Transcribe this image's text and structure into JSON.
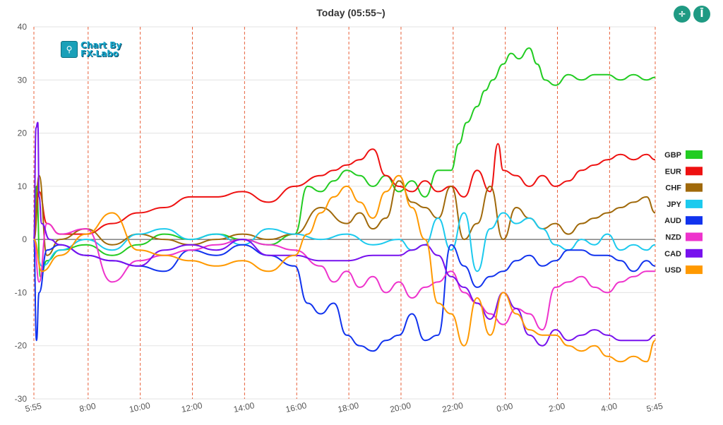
{
  "toolbar": {
    "zoom_fit_label": "÷",
    "zoom_range_label": "Ī"
  },
  "logo": {
    "line1": "Chart By",
    "line2": "FX-Labo"
  },
  "chart_data": {
    "type": "line",
    "title": "Today  (05:55~)",
    "ylim": [
      -30,
      40
    ],
    "yticks": [
      -30,
      -20,
      -10,
      0,
      10,
      20,
      30,
      40
    ],
    "xticks": [
      "5:55",
      "8:00",
      "10:00",
      "12:00",
      "14:00",
      "16:00",
      "18:00",
      "20:00",
      "22:00",
      "0:00",
      "2:00",
      "4:00",
      "5:45"
    ],
    "xtick_pos": [
      0,
      2.08,
      4.08,
      6.08,
      8.08,
      10.08,
      12.08,
      14.08,
      16.08,
      18.08,
      20.08,
      22.08,
      23.83
    ],
    "xlim": [
      0,
      23.83
    ],
    "grid": true,
    "legend_position": "right",
    "series": [
      {
        "name": "GBP",
        "color": "#22cc22",
        "x": [
          0,
          0.1,
          0.25,
          0.5,
          1,
          2,
          3,
          4,
          5,
          6,
          7,
          8,
          9,
          10,
          10.5,
          11,
          11.5,
          12,
          12.5,
          13,
          13.5,
          14,
          14.5,
          15,
          15.5,
          16,
          16.3,
          16.6,
          17,
          17.3,
          17.6,
          18,
          18.3,
          18.6,
          19,
          19.3,
          19.6,
          20,
          20.5,
          21,
          21.5,
          22,
          22.5,
          23,
          23.5,
          23.83
        ],
        "values": [
          0,
          10,
          -7,
          -4,
          -2,
          -1,
          -3,
          -1,
          1,
          0,
          1,
          0,
          -1,
          1,
          10,
          9,
          11,
          13,
          12,
          10,
          12,
          9,
          11,
          8,
          13,
          13,
          18,
          22,
          25,
          28,
          30,
          33,
          35,
          34,
          36,
          33,
          30,
          29,
          31,
          30,
          31,
          31,
          30,
          31,
          30,
          30.5
        ]
      },
      {
        "name": "EUR",
        "color": "#ee1111",
        "x": [
          0,
          0.2,
          0.5,
          1,
          2,
          3,
          4,
          5,
          6,
          7,
          8,
          9,
          10,
          11,
          11.5,
          12,
          12.5,
          13,
          13.5,
          14,
          14.5,
          15,
          15.5,
          16,
          16.5,
          17,
          17.5,
          17.8,
          18,
          18.5,
          19,
          19.5,
          20,
          20.5,
          21,
          21.5,
          22,
          22.5,
          23,
          23.5,
          23.83
        ],
        "values": [
          0,
          9,
          3,
          1,
          1,
          3,
          5,
          6,
          8,
          8,
          9,
          7,
          10,
          12,
          13,
          14,
          15,
          17,
          12,
          10,
          9,
          11,
          9,
          10,
          8,
          13,
          9,
          18,
          13,
          12,
          10,
          12,
          10,
          11,
          13,
          14,
          15,
          16,
          15,
          16,
          15
        ]
      },
      {
        "name": "CHF",
        "color": "#a0690a",
        "x": [
          0,
          0.2,
          0.5,
          1,
          2,
          3,
          4,
          5,
          6,
          7,
          8,
          9,
          10,
          11,
          12,
          12.5,
          13,
          13.5,
          14,
          14.5,
          15,
          15.5,
          16,
          16.5,
          17,
          17.5,
          18,
          18.5,
          19,
          19.5,
          20,
          20.5,
          21,
          21.5,
          22,
          22.5,
          23,
          23.5,
          23.83
        ],
        "values": [
          0,
          12,
          -3,
          0,
          2,
          -1,
          1,
          0,
          -1,
          0,
          1,
          0,
          1,
          6,
          3,
          5,
          2,
          4,
          11,
          7,
          6,
          4,
          10,
          0,
          3,
          10,
          0,
          6,
          4,
          2,
          3,
          1,
          3,
          4,
          5,
          6,
          7,
          8,
          5
        ]
      },
      {
        "name": "JPY",
        "color": "#1ccaee",
        "x": [
          0,
          0.3,
          1,
          2,
          3,
          4,
          5,
          6,
          7,
          8,
          9,
          10,
          11,
          12,
          13,
          14,
          14.5,
          15,
          15.5,
          16,
          16.5,
          17,
          17.5,
          18,
          18.5,
          19,
          19.5,
          20,
          20.5,
          21,
          21.5,
          22,
          22.5,
          23,
          23.5,
          23.83
        ],
        "values": [
          0,
          -5,
          -2,
          0,
          -2,
          1,
          2,
          0,
          1,
          -1,
          2,
          1,
          0,
          1,
          -1,
          0,
          -2,
          -1,
          4,
          -2,
          5,
          -6,
          2,
          5,
          3,
          4,
          2,
          -1,
          -2,
          0,
          -1,
          1,
          -2,
          -1,
          -2,
          -1
        ]
      },
      {
        "name": "AUD",
        "color": "#1133ee",
        "x": [
          0,
          0.1,
          0.2,
          0.5,
          1,
          2,
          3,
          4,
          5,
          6,
          7,
          8,
          9,
          10,
          10.5,
          11,
          11.5,
          12,
          12.5,
          13,
          13.5,
          14,
          14.5,
          15,
          15.5,
          16,
          16.5,
          17,
          17.5,
          18,
          18.5,
          19,
          19.5,
          20,
          20.5,
          21,
          21.5,
          22,
          22.5,
          23,
          23.5,
          23.83
        ],
        "values": [
          0,
          -19,
          -10,
          -2,
          -1,
          -3,
          -4,
          -5,
          -6,
          -2,
          -3,
          -1,
          -3,
          -5,
          -12,
          -14,
          -12,
          -18,
          -20,
          -21,
          -19,
          -18,
          -14,
          -19,
          -18,
          -1,
          -5,
          -9,
          -7,
          -6,
          -4,
          -3,
          -5,
          -4,
          -2,
          -2,
          -3,
          -3,
          -4,
          -6,
          -4,
          -5
        ]
      },
      {
        "name": "NZD",
        "color": "#ee33cc",
        "x": [
          0,
          0.2,
          0.5,
          1,
          2,
          3,
          4,
          5,
          6,
          7,
          8,
          9,
          10,
          11,
          11.5,
          12,
          12.5,
          13,
          13.5,
          14,
          14.5,
          15,
          15.5,
          16,
          16.5,
          17,
          17.5,
          18,
          18.5,
          19,
          19.5,
          20,
          20.5,
          21,
          21.5,
          22,
          22.5,
          23,
          23.5,
          23.83
        ],
        "values": [
          0,
          -8,
          3,
          1,
          2,
          -8,
          -4,
          -3,
          -2,
          -1,
          0,
          -1,
          -2,
          -5,
          -8,
          -6,
          -9,
          -7,
          -10,
          -8,
          -11,
          -9,
          -8,
          -6,
          -10,
          -12,
          -14,
          -16,
          -13,
          -14,
          -17,
          -9,
          -8,
          -7,
          -9,
          -10,
          -8,
          -7,
          -6,
          -6
        ]
      },
      {
        "name": "CAD",
        "color": "#7711ee",
        "x": [
          0,
          0.08,
          0.15,
          0.2,
          0.3,
          0.6,
          1,
          2,
          3,
          4,
          5,
          6,
          7,
          8,
          9,
          10,
          11,
          12,
          13,
          14,
          14.5,
          15,
          15.5,
          16,
          16.5,
          17,
          17.5,
          18,
          18.5,
          19,
          19.5,
          20,
          20.5,
          21,
          21.5,
          22,
          22.5,
          23,
          23.5,
          23.83
        ],
        "values": [
          0,
          21,
          22,
          8,
          3,
          0,
          -1,
          -3,
          -4,
          -5,
          -2,
          -1,
          -2,
          0,
          -3,
          -3,
          -4,
          -4,
          -3,
          -3,
          -2,
          -1,
          -3,
          -7,
          -9,
          -12,
          -15,
          -10,
          -13,
          -18,
          -20,
          -17,
          -19,
          -18,
          -17,
          -18,
          -19,
          -19,
          -19,
          -18
        ]
      },
      {
        "name": "USD",
        "color": "#ff9900",
        "x": [
          0,
          0.3,
          1,
          2,
          3,
          4,
          5,
          6,
          7,
          8,
          9,
          10,
          10.5,
          11,
          11.5,
          12,
          12.5,
          13,
          13.5,
          14,
          14.5,
          15,
          15.5,
          16,
          16.5,
          17,
          17.5,
          18,
          18.5,
          19,
          19.5,
          20,
          20.5,
          21,
          21.5,
          22,
          22.5,
          23,
          23.5,
          23.83
        ],
        "values": [
          0,
          -6,
          -3,
          1,
          5,
          -2,
          -3,
          -4,
          -5,
          -4,
          -6,
          -3,
          1,
          5,
          8,
          10,
          7,
          4,
          9,
          12,
          6,
          0,
          -12,
          -14,
          -20,
          -11,
          -18,
          -10,
          -14,
          -17,
          -18,
          -18,
          -20,
          -21,
          -20,
          -22,
          -23,
          -22,
          -23,
          -19
        ]
      }
    ]
  }
}
